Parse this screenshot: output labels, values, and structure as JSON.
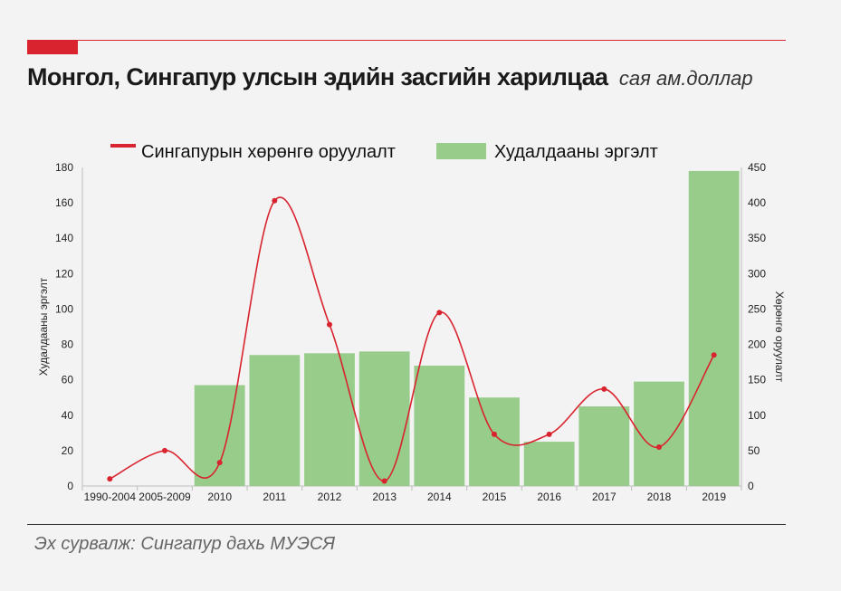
{
  "header": {
    "title": "Монгол, Сингапур улсын эдийн засгийн харилцаа",
    "unit": "сая ам.доллар"
  },
  "footer": {
    "source": "Эх сурвалж: Сингапур дахь МУЭСЯ"
  },
  "colors": {
    "line": "#d9232e",
    "bar": "#97cc8b",
    "accent": "#d9232e"
  },
  "chart_data": {
    "type": "bar",
    "categories": [
      "1990-2004",
      "2005-2009",
      "2010",
      "2011",
      "2012",
      "2013",
      "2014",
      "2015",
      "2016",
      "2017",
      "2018",
      "2019"
    ],
    "series": [
      {
        "name": "Худалдааны эргэлт",
        "type": "bar",
        "axis": "left",
        "values": [
          null,
          null,
          57,
          74,
          75,
          76,
          68,
          50,
          25,
          45,
          59,
          178
        ]
      },
      {
        "name": "Сингапурын хөрөнгө оруулалт",
        "type": "line",
        "axis": "right",
        "smooth": true,
        "values": [
          10,
          50,
          33,
          403,
          228,
          7,
          245,
          73,
          73,
          137,
          55,
          185
        ]
      }
    ],
    "ylabel_left": "Худалдааны эргэлт",
    "ylabel_right": "Хөрөнгө оруулалт",
    "ylim_left": [
      0,
      180
    ],
    "ylim_right": [
      0,
      450
    ],
    "yticks_left": [
      "0",
      "20",
      "40",
      "60",
      "80",
      "100",
      "120",
      "140",
      "160",
      "180"
    ],
    "yticks_right": [
      "0",
      "50",
      "100",
      "150",
      "200",
      "250",
      "300",
      "350",
      "400",
      "450"
    ],
    "legend_position": "top",
    "grid": false
  }
}
